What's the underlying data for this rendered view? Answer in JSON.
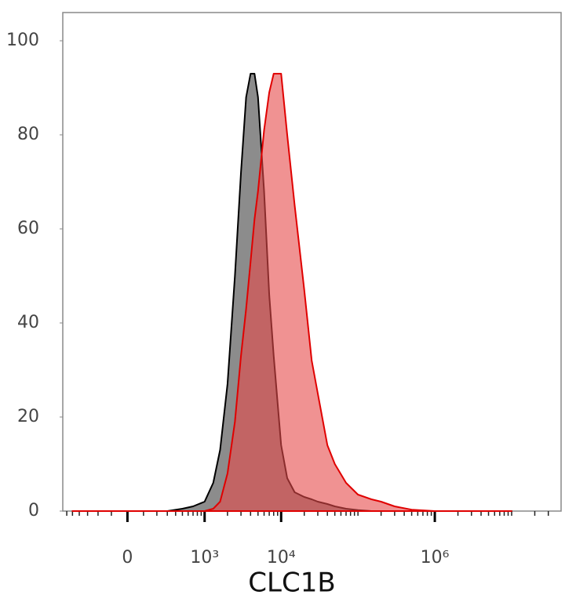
{
  "chart_data": {
    "type": "area",
    "x_label": "CLC1B",
    "xscale": "asinh",
    "xlim": [
      -680,
      44000000
    ],
    "ylim": [
      0,
      106
    ],
    "xticks": [
      0,
      {
        "value": 1000,
        "label": "10³"
      },
      {
        "value": 10000,
        "label": "10⁴"
      },
      {
        "value": 1000000,
        "label": "10⁶"
      }
    ],
    "xminorticks": [
      -600,
      -500,
      -400,
      -300,
      -200,
      -100,
      100,
      200,
      300,
      400,
      500,
      600,
      700,
      800,
      900,
      2000,
      3000,
      4000,
      5000,
      6000,
      7000,
      8000,
      9000,
      20000,
      30000,
      40000,
      50000,
      60000,
      70000,
      80000,
      90000,
      100000,
      200000,
      300000,
      400000,
      500000,
      600000,
      700000,
      800000,
      900000,
      2000000,
      3000000,
      4000000,
      5000000,
      6000000,
      7000000,
      8000000,
      9000000,
      10000000,
      20000000,
      30000000
    ],
    "yticks": [
      0,
      20,
      40,
      60,
      80,
      100
    ],
    "x": [
      -500,
      300,
      500,
      700,
      1000,
      1300,
      1600,
      2000,
      2500,
      3000,
      3500,
      4000,
      4500,
      5000,
      6000,
      7000,
      8000,
      10000,
      12000,
      15000,
      20000,
      25000,
      30000,
      40000,
      50000,
      70000,
      100000,
      150000,
      200000,
      300000,
      500000,
      1000000,
      10000000
    ],
    "series": [
      {
        "color": "#8c8c8c",
        "line_color": "#000000",
        "values": [
          0,
          0,
          0.5,
          1,
          2,
          6,
          13,
          27,
          50,
          72,
          88,
          93,
          93,
          88,
          68,
          46,
          33,
          14,
          7,
          4,
          3,
          2.5,
          2,
          1.5,
          1,
          0.5,
          0.2,
          0,
          0,
          0,
          0,
          0,
          0
        ]
      },
      {
        "color": "#e64a4a",
        "line_color": "#e00000",
        "values": [
          0,
          0,
          0,
          0,
          0,
          0.5,
          2,
          8,
          19,
          33,
          43,
          53,
          62,
          68,
          81,
          89,
          93,
          93,
          80,
          65,
          47,
          32,
          25,
          14,
          10,
          6,
          3.5,
          2.5,
          2,
          1,
          0.3,
          0,
          0
        ]
      }
    ]
  }
}
